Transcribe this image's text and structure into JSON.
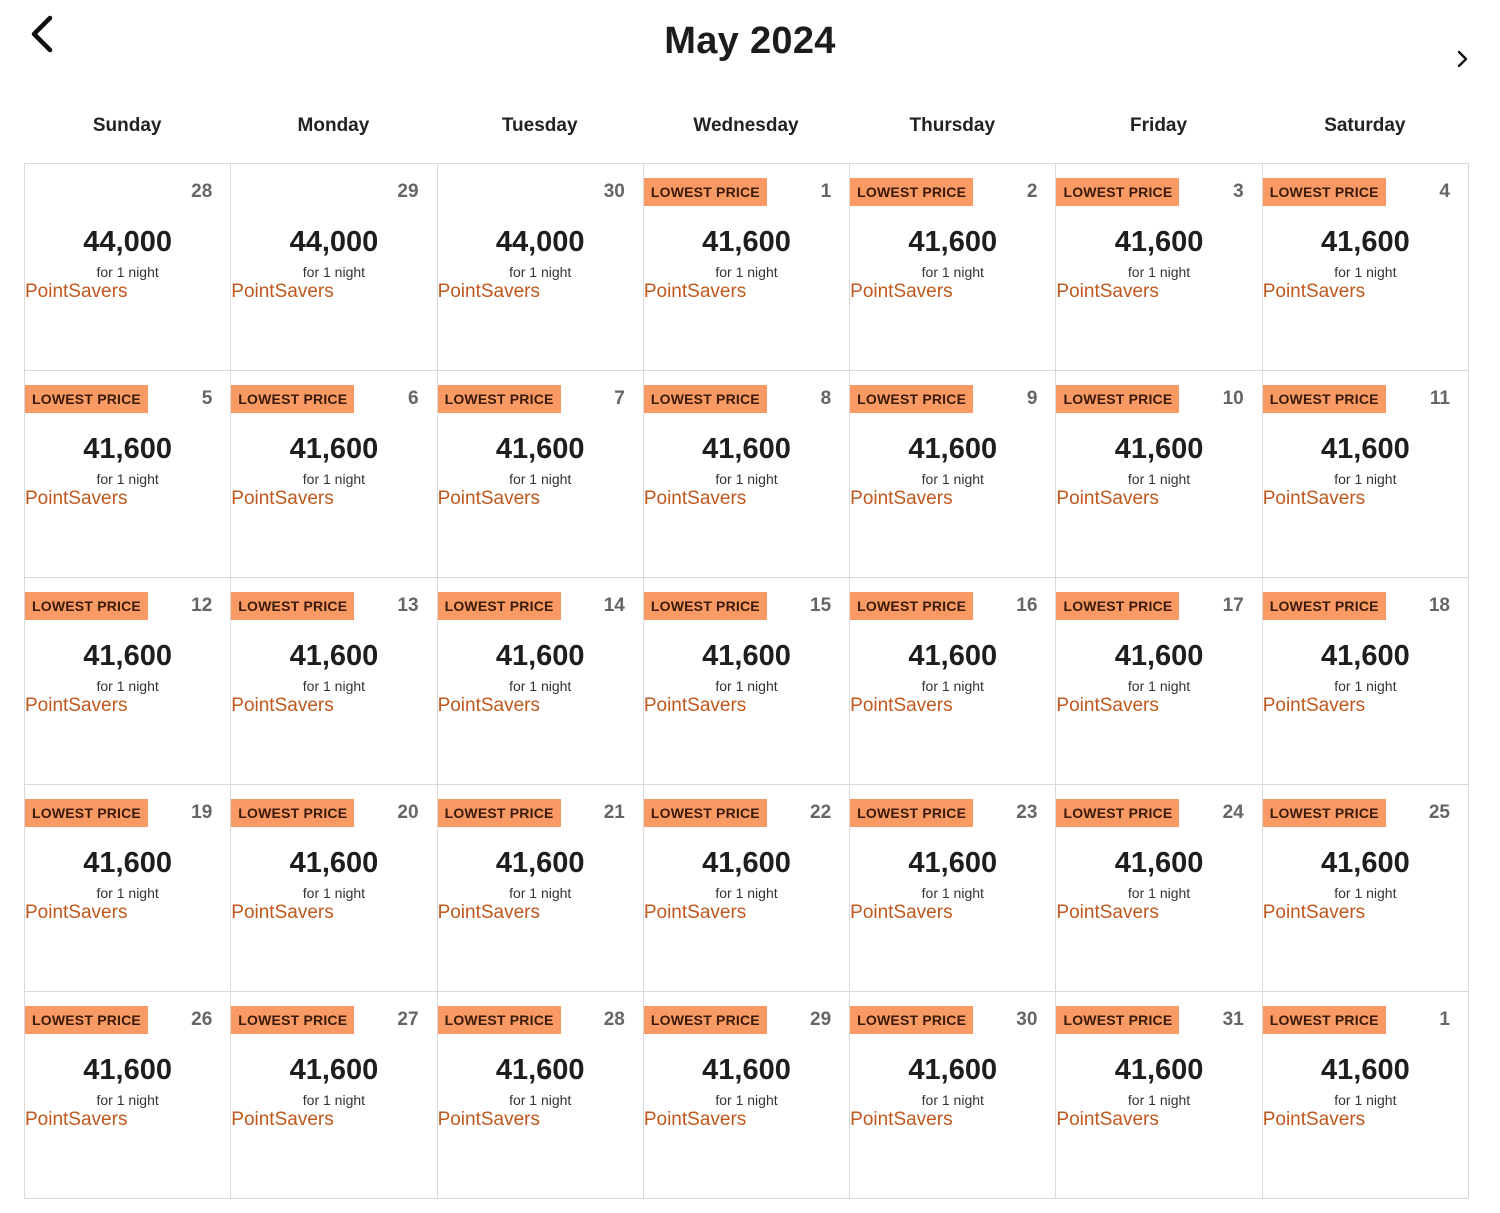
{
  "header": {
    "title": "May 2024",
    "prev_icon": "chevron-left-icon",
    "next_icon": "chevron-right-icon"
  },
  "weekdays": [
    "Sunday",
    "Monday",
    "Tuesday",
    "Wednesday",
    "Thursday",
    "Friday",
    "Saturday"
  ],
  "cell_text": {
    "night_label": "for 1 night",
    "brand_label": "PointSavers",
    "badge_label": "LOWEST PRICE"
  },
  "colors": {
    "badge_bg": "#f99a64",
    "brand_text": "#c0581d"
  },
  "days": [
    {
      "day": "28",
      "price": "44,000",
      "lowest": false
    },
    {
      "day": "29",
      "price": "44,000",
      "lowest": false
    },
    {
      "day": "30",
      "price": "44,000",
      "lowest": false
    },
    {
      "day": "1",
      "price": "41,600",
      "lowest": true
    },
    {
      "day": "2",
      "price": "41,600",
      "lowest": true
    },
    {
      "day": "3",
      "price": "41,600",
      "lowest": true
    },
    {
      "day": "4",
      "price": "41,600",
      "lowest": true
    },
    {
      "day": "5",
      "price": "41,600",
      "lowest": true
    },
    {
      "day": "6",
      "price": "41,600",
      "lowest": true
    },
    {
      "day": "7",
      "price": "41,600",
      "lowest": true
    },
    {
      "day": "8",
      "price": "41,600",
      "lowest": true
    },
    {
      "day": "9",
      "price": "41,600",
      "lowest": true
    },
    {
      "day": "10",
      "price": "41,600",
      "lowest": true
    },
    {
      "day": "11",
      "price": "41,600",
      "lowest": true
    },
    {
      "day": "12",
      "price": "41,600",
      "lowest": true
    },
    {
      "day": "13",
      "price": "41,600",
      "lowest": true
    },
    {
      "day": "14",
      "price": "41,600",
      "lowest": true
    },
    {
      "day": "15",
      "price": "41,600",
      "lowest": true
    },
    {
      "day": "16",
      "price": "41,600",
      "lowest": true
    },
    {
      "day": "17",
      "price": "41,600",
      "lowest": true
    },
    {
      "day": "18",
      "price": "41,600",
      "lowest": true
    },
    {
      "day": "19",
      "price": "41,600",
      "lowest": true
    },
    {
      "day": "20",
      "price": "41,600",
      "lowest": true
    },
    {
      "day": "21",
      "price": "41,600",
      "lowest": true
    },
    {
      "day": "22",
      "price": "41,600",
      "lowest": true
    },
    {
      "day": "23",
      "price": "41,600",
      "lowest": true
    },
    {
      "day": "24",
      "price": "41,600",
      "lowest": true
    },
    {
      "day": "25",
      "price": "41,600",
      "lowest": true
    },
    {
      "day": "26",
      "price": "41,600",
      "lowest": true
    },
    {
      "day": "27",
      "price": "41,600",
      "lowest": true
    },
    {
      "day": "28",
      "price": "41,600",
      "lowest": true
    },
    {
      "day": "29",
      "price": "41,600",
      "lowest": true
    },
    {
      "day": "30",
      "price": "41,600",
      "lowest": true
    },
    {
      "day": "31",
      "price": "41,600",
      "lowest": true
    },
    {
      "day": "1",
      "price": "41,600",
      "lowest": true
    }
  ]
}
